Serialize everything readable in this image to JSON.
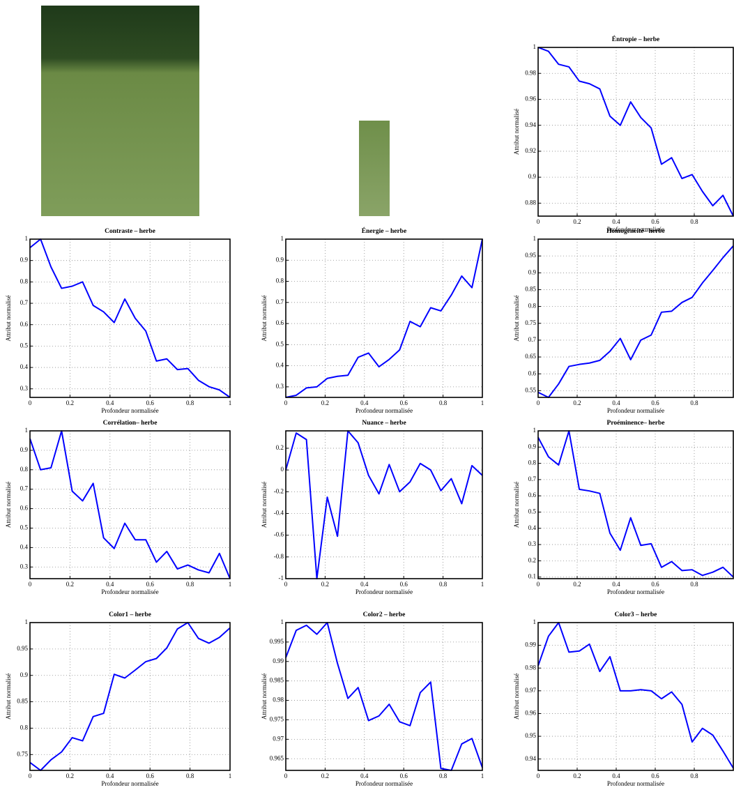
{
  "chart_data": [
    {
      "type": "line",
      "title": "Éntropie – herbe",
      "x_label": "Profondeur normalisée",
      "y_label": "Attribut normalisé",
      "color": "#0000ff",
      "grid": true,
      "x": [
        0,
        0.053,
        0.105,
        0.158,
        0.211,
        0.263,
        0.316,
        0.368,
        0.421,
        0.474,
        0.526,
        0.579,
        0.632,
        0.684,
        0.737,
        0.789,
        0.842,
        0.895,
        0.947,
        1
      ],
      "values": [
        1,
        0.997,
        0.987,
        0.985,
        0.974,
        0.972,
        0.968,
        0.947,
        0.94,
        0.958,
        0.946,
        0.938,
        0.91,
        0.915,
        0.899,
        0.902,
        0.889,
        0.878,
        0.886,
        0.87
      ],
      "xlim": [
        0,
        1
      ],
      "xticks": [
        0,
        0.2,
        0.4,
        0.6,
        0.8
      ],
      "ylim": [
        0.87,
        1
      ],
      "yticks": [
        0.88,
        0.9,
        0.92,
        0.94,
        0.96,
        0.98,
        1
      ]
    },
    {
      "type": "line",
      "title": "Contraste – herbe",
      "x_label": "Profondeur normalisée",
      "y_label": "Attribut normalisé",
      "color": "#0000ff",
      "grid": true,
      "x": [
        0,
        0.053,
        0.105,
        0.158,
        0.211,
        0.263,
        0.316,
        0.368,
        0.421,
        0.474,
        0.526,
        0.579,
        0.632,
        0.684,
        0.737,
        0.789,
        0.842,
        0.895,
        0.947,
        1
      ],
      "values": [
        0.96,
        1,
        0.87,
        0.77,
        0.78,
        0.8,
        0.69,
        0.66,
        0.61,
        0.72,
        0.63,
        0.57,
        0.43,
        0.44,
        0.39,
        0.395,
        0.34,
        0.31,
        0.295,
        0.26
      ],
      "xlim": [
        0,
        1
      ],
      "xticks": [
        0,
        0.2,
        0.4,
        0.6,
        0.8,
        1
      ],
      "ylim": [
        0.26,
        1
      ],
      "yticks": [
        0.3,
        0.4,
        0.5,
        0.6,
        0.7,
        0.8,
        0.9,
        1
      ]
    },
    {
      "type": "line",
      "title": "Énergie – herbe",
      "x_label": "Profondeur normalisée",
      "y_label": "Attribut normalisé",
      "color": "#0000ff",
      "grid": true,
      "x": [
        0,
        0.053,
        0.105,
        0.158,
        0.211,
        0.263,
        0.316,
        0.368,
        0.421,
        0.474,
        0.526,
        0.579,
        0.632,
        0.684,
        0.737,
        0.789,
        0.842,
        0.895,
        0.947,
        1
      ],
      "values": [
        0.25,
        0.26,
        0.295,
        0.3,
        0.34,
        0.35,
        0.355,
        0.44,
        0.46,
        0.395,
        0.43,
        0.475,
        0.61,
        0.585,
        0.675,
        0.66,
        0.735,
        0.825,
        0.77,
        1
      ],
      "xlim": [
        0,
        1
      ],
      "xticks": [
        0,
        0.2,
        0.4,
        0.6,
        0.8,
        1
      ],
      "ylim": [
        0.25,
        1
      ],
      "yticks": [
        0.3,
        0.4,
        0.5,
        0.6,
        0.7,
        0.8,
        0.9,
        1
      ]
    },
    {
      "type": "line",
      "title": "Homogénéité– herbe",
      "x_label": "Profondeur normalisée",
      "y_label": "Attribut normalisé",
      "color": "#0000ff",
      "grid": true,
      "x": [
        0,
        0.053,
        0.105,
        0.158,
        0.211,
        0.263,
        0.316,
        0.368,
        0.421,
        0.474,
        0.526,
        0.579,
        0.632,
        0.684,
        0.737,
        0.789,
        0.842,
        0.895,
        0.947,
        1
      ],
      "values": [
        0.545,
        0.53,
        0.57,
        0.622,
        0.628,
        0.632,
        0.64,
        0.667,
        0.705,
        0.642,
        0.7,
        0.715,
        0.783,
        0.786,
        0.812,
        0.827,
        0.87,
        0.907,
        0.945,
        0.98
      ],
      "xlim": [
        0,
        1
      ],
      "xticks": [
        0,
        0.2,
        0.4,
        0.6,
        0.8
      ],
      "ylim": [
        0.53,
        1
      ],
      "yticks": [
        0.55,
        0.6,
        0.65,
        0.7,
        0.75,
        0.8,
        0.85,
        0.9,
        0.95,
        1
      ]
    },
    {
      "type": "line",
      "title": "Corrélation– herbe",
      "x_label": "Profondeur normalisée",
      "y_label": "Attribut normalisé",
      "color": "#0000ff",
      "grid": true,
      "x": [
        0,
        0.053,
        0.105,
        0.158,
        0.211,
        0.263,
        0.316,
        0.368,
        0.421,
        0.474,
        0.526,
        0.579,
        0.632,
        0.684,
        0.737,
        0.789,
        0.842,
        0.895,
        0.947,
        1
      ],
      "values": [
        0.96,
        0.8,
        0.81,
        1,
        0.69,
        0.64,
        0.73,
        0.45,
        0.395,
        0.525,
        0.44,
        0.44,
        0.325,
        0.38,
        0.29,
        0.31,
        0.285,
        0.27,
        0.37,
        0.24
      ],
      "xlim": [
        0,
        1
      ],
      "xticks": [
        0,
        0.2,
        0.4,
        0.6,
        0.8,
        1
      ],
      "ylim": [
        0.24,
        1
      ],
      "yticks": [
        0.3,
        0.4,
        0.5,
        0.6,
        0.7,
        0.8,
        0.9,
        1
      ]
    },
    {
      "type": "line",
      "title": "Nuance – herbe",
      "x_label": "Profondeur normalisée",
      "y_label": "Attribut normalisé",
      "color": "#0000ff",
      "grid": true,
      "x": [
        0,
        0.053,
        0.105,
        0.158,
        0.211,
        0.263,
        0.316,
        0.368,
        0.421,
        0.474,
        0.526,
        0.579,
        0.632,
        0.684,
        0.737,
        0.789,
        0.842,
        0.895,
        0.947,
        1
      ],
      "values": [
        0,
        0.34,
        0.28,
        -1,
        -0.25,
        -0.61,
        0.36,
        0.25,
        -0.05,
        -0.22,
        0.05,
        -0.2,
        -0.11,
        0.06,
        0,
        -0.19,
        -0.08,
        -0.31,
        0.04,
        -0.05
      ],
      "xlim": [
        0,
        1
      ],
      "xticks": [
        0,
        0.2,
        0.4,
        0.6,
        0.8,
        1
      ],
      "ylim": [
        -1,
        0.36
      ],
      "yticks": [
        -1,
        -0.8,
        -0.6,
        -0.4,
        -0.2,
        0,
        0.2
      ]
    },
    {
      "type": "line",
      "title": "Proéminence– herbe",
      "x_label": "Profondeur normalisée",
      "y_label": "Attribut normalisé",
      "color": "#0000ff",
      "grid": true,
      "x": [
        0,
        0.053,
        0.105,
        0.158,
        0.211,
        0.263,
        0.316,
        0.368,
        0.421,
        0.474,
        0.526,
        0.579,
        0.632,
        0.684,
        0.737,
        0.789,
        0.842,
        0.895,
        0.947,
        1
      ],
      "values": [
        0.96,
        0.84,
        0.79,
        1,
        0.64,
        0.63,
        0.615,
        0.37,
        0.265,
        0.465,
        0.295,
        0.305,
        0.16,
        0.195,
        0.14,
        0.145,
        0.11,
        0.13,
        0.16,
        0.1
      ],
      "xlim": [
        0,
        1
      ],
      "xticks": [
        0,
        0.2,
        0.4,
        0.6,
        0.8
      ],
      "ylim": [
        0.09,
        1
      ],
      "yticks": [
        0.1,
        0.2,
        0.3,
        0.4,
        0.5,
        0.6,
        0.7,
        0.8,
        0.9,
        1
      ]
    },
    {
      "type": "line",
      "title": "Color1 – herbe",
      "x_label": "Profondeur normalisée",
      "y_label": "Attribut normalisé",
      "color": "#0000ff",
      "grid": true,
      "x": [
        0,
        0.053,
        0.105,
        0.158,
        0.211,
        0.263,
        0.316,
        0.368,
        0.421,
        0.474,
        0.526,
        0.579,
        0.632,
        0.684,
        0.737,
        0.789,
        0.842,
        0.895,
        0.947,
        1
      ],
      "values": [
        0.735,
        0.72,
        0.74,
        0.755,
        0.782,
        0.776,
        0.822,
        0.828,
        0.902,
        0.895,
        0.91,
        0.926,
        0.932,
        0.952,
        0.988,
        1,
        0.97,
        0.961,
        0.972,
        0.99
      ],
      "xlim": [
        0,
        1
      ],
      "xticks": [
        0,
        0.2,
        0.4,
        0.6,
        0.8,
        1
      ],
      "ylim": [
        0.72,
        1
      ],
      "yticks": [
        0.75,
        0.8,
        0.85,
        0.9,
        0.95,
        1
      ]
    },
    {
      "type": "line",
      "title": "Color2 – herbe",
      "x_label": "Profondeur normalisée",
      "y_label": "Attribut normalisé",
      "color": "#0000ff",
      "grid": true,
      "x": [
        0,
        0.053,
        0.105,
        0.158,
        0.211,
        0.263,
        0.316,
        0.368,
        0.421,
        0.474,
        0.526,
        0.579,
        0.632,
        0.684,
        0.737,
        0.789,
        0.842,
        0.895,
        0.947,
        1
      ],
      "values": [
        0.991,
        0.998,
        0.9993,
        0.997,
        1,
        0.9895,
        0.9805,
        0.9833,
        0.9748,
        0.976,
        0.979,
        0.9745,
        0.9735,
        0.982,
        0.9847,
        0.9625,
        0.962,
        0.9688,
        0.9702,
        0.9627
      ],
      "xlim": [
        0,
        1
      ],
      "xticks": [
        0,
        0.2,
        0.4,
        0.6,
        0.8,
        1
      ],
      "ylim": [
        0.962,
        1
      ],
      "yticks": [
        0.965,
        0.97,
        0.975,
        0.98,
        0.985,
        0.99,
        0.995,
        1
      ]
    },
    {
      "type": "line",
      "title": "Color3 – herbe",
      "x_label": "Profondeur normalisée",
      "y_label": "Attribut normalisé",
      "color": "#0000ff",
      "grid": true,
      "x": [
        0,
        0.053,
        0.105,
        0.158,
        0.211,
        0.263,
        0.316,
        0.368,
        0.421,
        0.474,
        0.526,
        0.579,
        0.632,
        0.684,
        0.737,
        0.789,
        0.842,
        0.895,
        0.947,
        1
      ],
      "values": [
        0.981,
        0.994,
        1,
        0.987,
        0.9875,
        0.9905,
        0.9785,
        0.985,
        0.97,
        0.97,
        0.9705,
        0.97,
        0.9665,
        0.9695,
        0.964,
        0.9475,
        0.9535,
        0.9505,
        0.9435,
        0.936
      ],
      "xlim": [
        0,
        1
      ],
      "xticks": [
        0,
        0.2,
        0.4,
        0.6,
        0.8
      ],
      "ylim": [
        0.935,
        1
      ],
      "yticks": [
        0.94,
        0.95,
        0.96,
        0.97,
        0.98,
        0.99,
        1
      ]
    }
  ]
}
